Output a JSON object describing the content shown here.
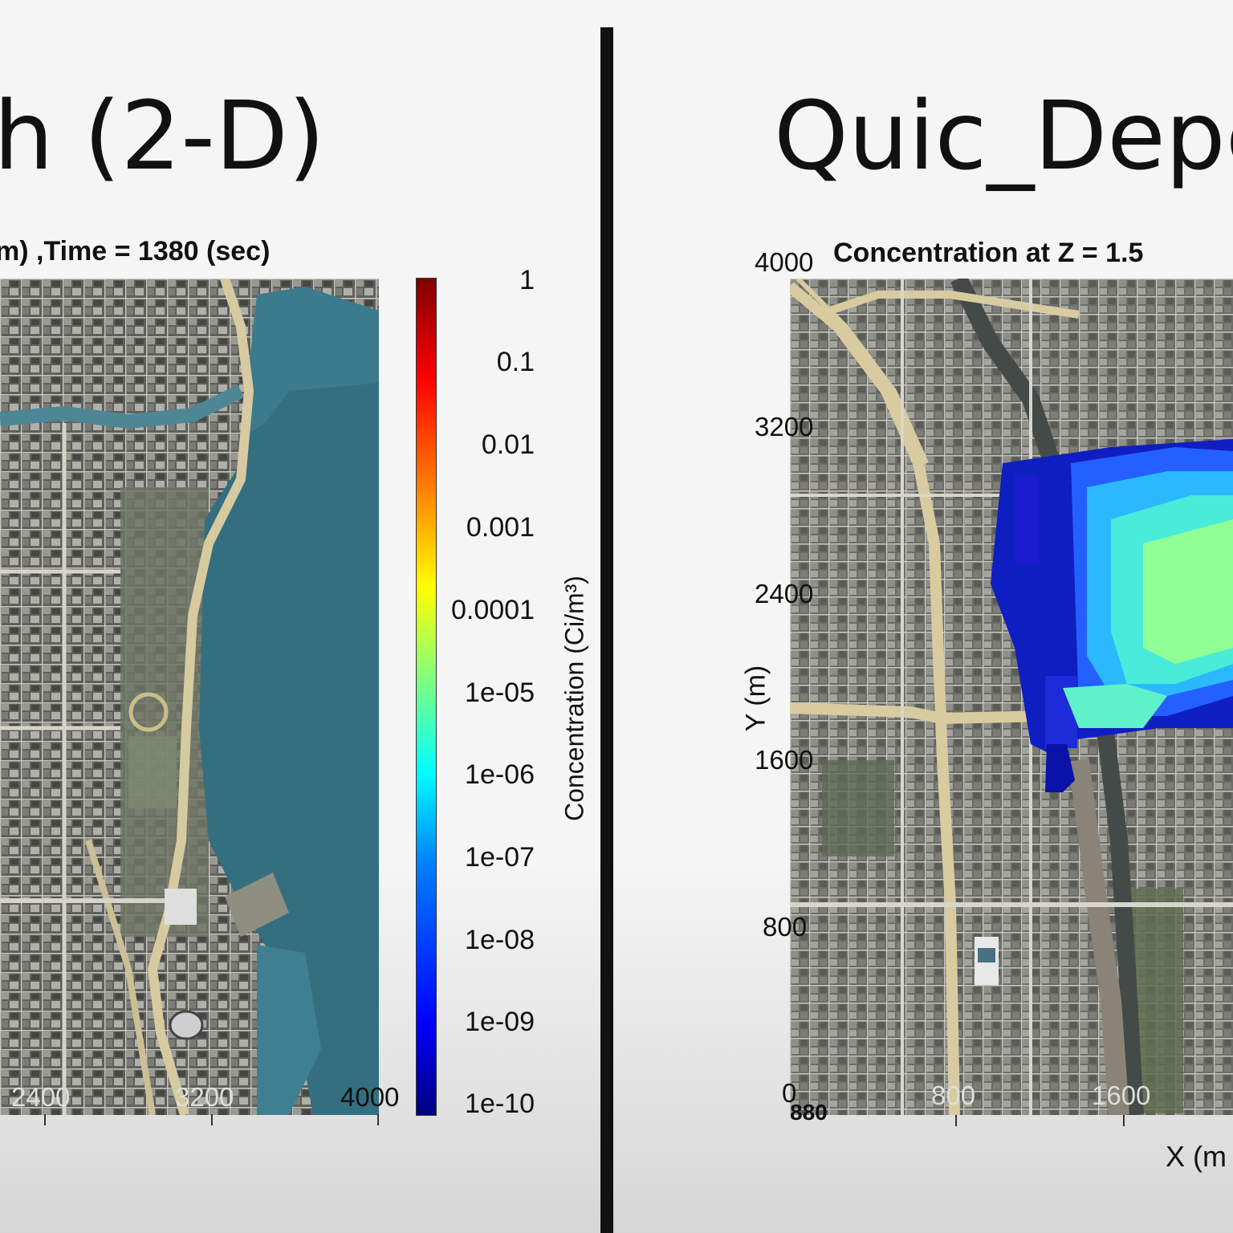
{
  "left": {
    "slide_title": "h  (2-D)",
    "plot_title": "m) ,Time = 1380 (sec)",
    "x_ticks": [
      "2400",
      "3200",
      "4000"
    ],
    "colorbar": {
      "labels": [
        "1",
        "0.1",
        "0.01",
        "0.001",
        "0.0001",
        "1e-05",
        "1e-06",
        "1e-07",
        "1e-08",
        "1e-09",
        "1e-10"
      ],
      "title": "Concentration (Ci/m³)"
    }
  },
  "right": {
    "slide_title": "Quic_Depe",
    "plot_title": "Concentration at Z = 1.5",
    "y_label": "Y (m)",
    "x_label": "X (m",
    "y_ticks": [
      "4000",
      "3200",
      "2400",
      "1600",
      "800",
      "0"
    ],
    "x_ticks": [
      "800",
      "1600"
    ],
    "origin_overlap": "880"
  },
  "chart_data": [
    {
      "type": "heatmap",
      "title": "m) ,Time = 1380 (sec)",
      "x_ticks": [
        2400,
        3200,
        4000
      ],
      "colorbar": {
        "scale": "log",
        "range": [
          1e-10,
          1
        ],
        "ticks": [
          "1",
          "0.1",
          "0.01",
          "0.001",
          "0.0001",
          "1e-05",
          "1e-06",
          "1e-07",
          "1e-08",
          "1e-09",
          "1e-10"
        ],
        "label": "Concentration (Ci/m³)",
        "colormap": "jet"
      },
      "background": "satellite map"
    },
    {
      "type": "heatmap",
      "title": "Concentration at Z = 1.5",
      "xlabel": "X (m",
      "ylabel": "Y (m)",
      "ylim": [
        0,
        4000
      ],
      "y_ticks": [
        0,
        800,
        1600,
        2400,
        3200,
        4000
      ],
      "x_ticks": [
        0,
        800,
        1600
      ],
      "background": "satellite map",
      "plume_colors": [
        "#0000b0",
        "#2a2aff",
        "#28c8ff",
        "#5affc8",
        "#a0ff80"
      ]
    }
  ]
}
